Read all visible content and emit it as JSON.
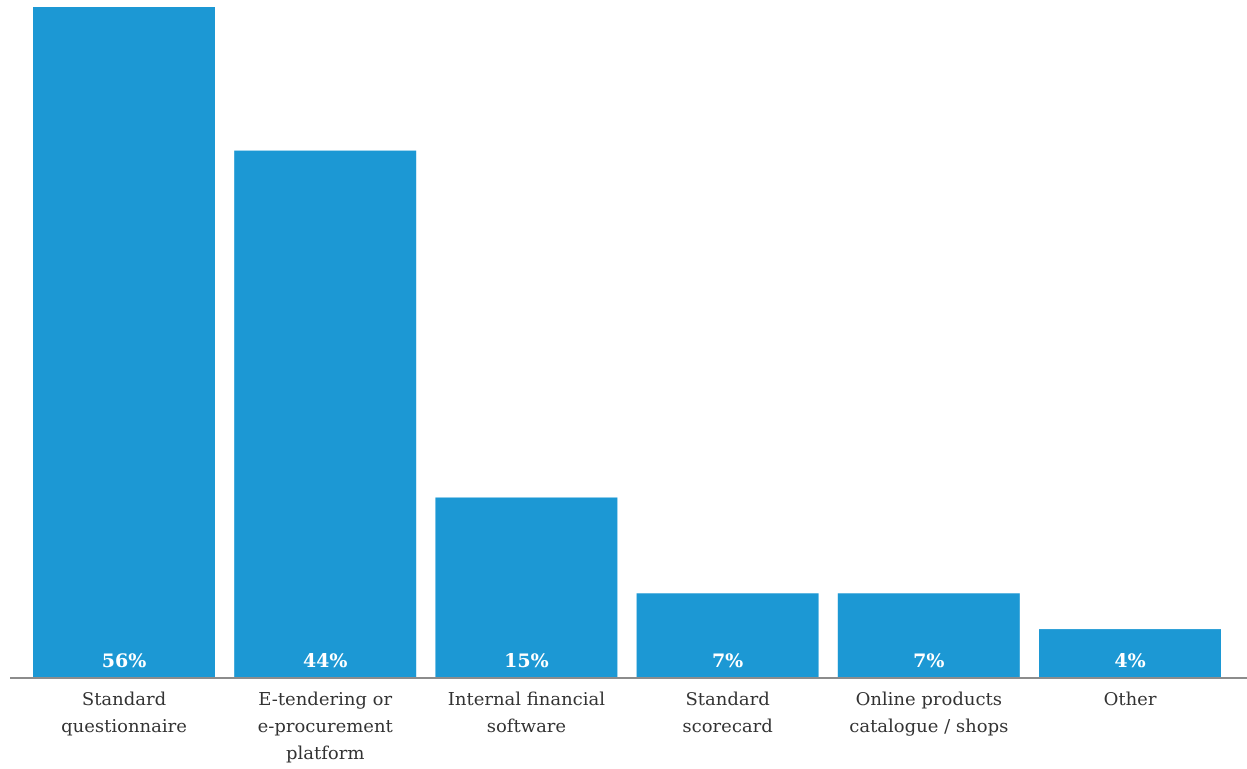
{
  "chart_data": {
    "type": "bar",
    "categories": [
      [
        "Standard",
        "questionnaire"
      ],
      [
        "E-tendering or",
        "e-procurement",
        "platform"
      ],
      [
        "Internal financial",
        "software"
      ],
      [
        "Standard",
        "scorecard"
      ],
      [
        "Online products",
        "catalogue / shops"
      ],
      [
        "Other"
      ]
    ],
    "values": [
      56,
      44,
      15,
      7,
      7,
      4
    ],
    "value_labels": [
      "56%",
      "44%",
      "15%",
      "7%",
      "7%",
      "4%"
    ],
    "ylim": [
      0,
      56
    ],
    "grid": false,
    "legend": "none",
    "colors": {
      "bar": "#1c98d4",
      "axis": "#8c8c8c"
    }
  }
}
